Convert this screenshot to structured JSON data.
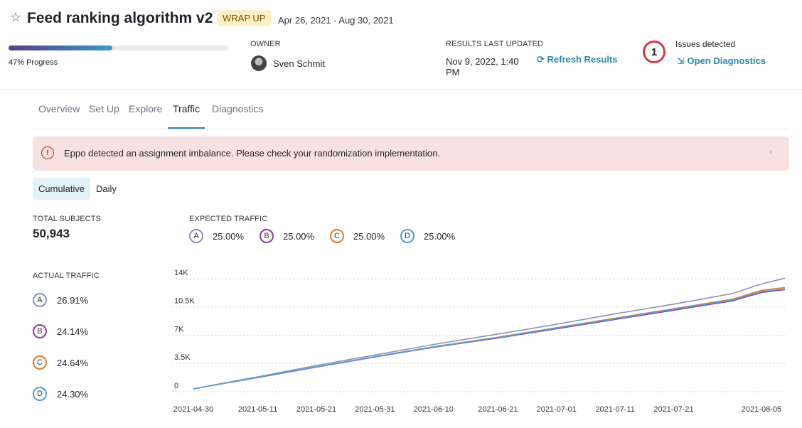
{
  "header": {
    "title": "Feed ranking algorithm v2",
    "status": "WRAP UP",
    "dates": "Apr 26, 2021 - Aug 30, 2021",
    "progress": {
      "value": 47,
      "label": "47% Progress"
    },
    "owner_label": "OWNER",
    "owner_name": "Sven Schmit",
    "results_label": "RESULTS LAST UPDATED",
    "results_time": "Nov 9, 2022, 1:40 PM",
    "refresh": "Refresh Results",
    "issues": {
      "count": 1,
      "label": "Issues detected",
      "action": "Open Diagnostics"
    }
  },
  "tabs": {
    "items": [
      "Overview",
      "Set Up",
      "Explore",
      "Traffic",
      "Diagnostics"
    ],
    "active": 3
  },
  "alert": "Eppo detected an assignment imbalance. Please check your randomization implementation.",
  "toggle": {
    "items": [
      "Cumulative",
      "Daily"
    ],
    "active": 0
  },
  "total_subjects": {
    "label": "TOTAL SUBJECTS",
    "value": "50,943"
  },
  "expected_traffic": {
    "label": "EXPECTED TRAFFIC",
    "values": [
      "25.00%",
      "25.00%",
      "25.00%",
      "25.00%"
    ]
  },
  "actual_traffic": {
    "label": "ACTUAL TRAFFIC",
    "values": [
      "26.91%",
      "24.14%",
      "24.64%",
      "24.30%"
    ]
  },
  "chart_data": {
    "type": "line",
    "x": [
      "2021-04-30",
      "2021-05-05",
      "2021-05-11",
      "2021-05-21",
      "2021-05-31",
      "2021-06-10",
      "2021-06-21",
      "2021-07-01",
      "2021-07-11",
      "2021-07-21",
      "2021-07-31",
      "2021-08-05",
      "2021-08-09"
    ],
    "xlim": [
      "2021-04-30",
      "2021-08-09"
    ],
    "xticks": [
      "2021-04-30",
      "2021-05-11",
      "2021-05-21",
      "2021-05-31",
      "2021-06-10",
      "2021-06-21",
      "2021-07-01",
      "2021-07-11",
      "2021-07-21",
      "2021-08-05"
    ],
    "ylim": [
      0,
      14000
    ],
    "yticks": [
      0,
      {
        "value": 3500,
        "label": "3.5K"
      },
      {
        "value": 7000,
        "label": "7K"
      },
      {
        "value": 10500,
        "label": "10.5K"
      },
      {
        "value": 14000,
        "label": "14K"
      }
    ],
    "grid": true,
    "series": [
      {
        "name": "A",
        "color": "#8a93b8",
        "values": [
          0,
          700,
          1500,
          2900,
          4200,
          5500,
          6800,
          8000,
          9300,
          10500,
          11800,
          13000,
          13709
        ]
      },
      {
        "name": "B",
        "color": "#8e3a9e",
        "values": [
          0,
          650,
          1400,
          2700,
          3950,
          5150,
          6300,
          7450,
          8600,
          9750,
          10900,
          11950,
          12298
        ]
      },
      {
        "name": "C",
        "color": "#e07b2a",
        "values": [
          0,
          660,
          1420,
          2740,
          4000,
          5220,
          6400,
          7580,
          8750,
          9920,
          11100,
          12200,
          12552
        ]
      },
      {
        "name": "D",
        "color": "#4a9fe0",
        "values": [
          0,
          655,
          1410,
          2720,
          3980,
          5190,
          6350,
          7520,
          8680,
          9850,
          11000,
          12050,
          12379
        ]
      }
    ]
  }
}
